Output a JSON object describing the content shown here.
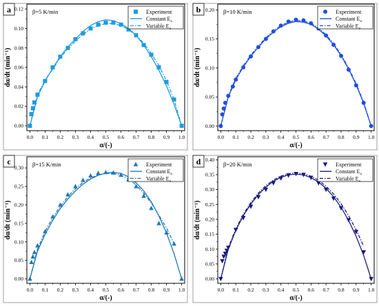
{
  "chart_data": [
    {
      "type": "scatter",
      "panel": "a",
      "condition": "β=5 K/min",
      "xlabel": "α/(-)",
      "ylabel": "dα/dt (min⁻¹)",
      "xlim": [
        -0.02,
        1.02
      ],
      "ylim": [
        -0.005,
        0.125
      ],
      "xticks": [
        "0.0",
        "0.1",
        "0.2",
        "0.3",
        "0.4",
        "0.5",
        "0.6",
        "0.7",
        "0.8",
        "0.9",
        "1.0"
      ],
      "yticks": [
        "0.00",
        "0.02",
        "0.04",
        "0.06",
        "0.08",
        "0.10",
        "0.12"
      ],
      "grid": false,
      "legend_position": "top-right",
      "color": "#1e9be0",
      "marker": "square",
      "legend": [
        "Experiment",
        "Constant E",
        "Variable E"
      ],
      "legend_subscript": "a",
      "series": [
        {
          "name": "Experiment",
          "style": "markers",
          "x": [
            0.0,
            0.01,
            0.02,
            0.03,
            0.05,
            0.1,
            0.15,
            0.2,
            0.25,
            0.3,
            0.35,
            0.4,
            0.45,
            0.5,
            0.55,
            0.6,
            0.65,
            0.7,
            0.75,
            0.8,
            0.85,
            0.9,
            0.95,
            1.0
          ],
          "y": [
            0.0,
            0.012,
            0.018,
            0.024,
            0.032,
            0.046,
            0.06,
            0.071,
            0.08,
            0.089,
            0.095,
            0.1,
            0.104,
            0.106,
            0.106,
            0.104,
            0.099,
            0.093,
            0.083,
            0.073,
            0.06,
            0.045,
            0.027,
            0.0
          ]
        },
        {
          "name": "Constant E",
          "style": "solid",
          "x": [
            0.0,
            0.05,
            0.1,
            0.15,
            0.2,
            0.25,
            0.3,
            0.35,
            0.4,
            0.45,
            0.5,
            0.55,
            0.6,
            0.65,
            0.7,
            0.75,
            0.8,
            0.85,
            0.9,
            0.95,
            1.0
          ],
          "y": [
            0.0,
            0.03,
            0.046,
            0.059,
            0.071,
            0.081,
            0.089,
            0.097,
            0.103,
            0.107,
            0.109,
            0.108,
            0.105,
            0.1,
            0.093,
            0.083,
            0.071,
            0.057,
            0.041,
            0.022,
            0.0
          ]
        },
        {
          "name": "Variable E",
          "style": "dashdot",
          "x": [
            0.0,
            0.05,
            0.1,
            0.15,
            0.2,
            0.25,
            0.3,
            0.35,
            0.4,
            0.45,
            0.5,
            0.55,
            0.6,
            0.65,
            0.7,
            0.75,
            0.8,
            0.85,
            0.9,
            0.95,
            1.0
          ],
          "y": [
            0.0,
            0.032,
            0.047,
            0.058,
            0.07,
            0.079,
            0.087,
            0.094,
            0.099,
            0.103,
            0.105,
            0.105,
            0.103,
            0.099,
            0.093,
            0.085,
            0.074,
            0.062,
            0.046,
            0.027,
            0.0
          ]
        }
      ]
    },
    {
      "type": "scatter",
      "panel": "b",
      "condition": "β=10 K/min",
      "xlabel": "α/(-)",
      "ylabel": "dα/dt (min⁻¹)",
      "xlim": [
        -0.02,
        1.02
      ],
      "ylim": [
        -0.008,
        0.21
      ],
      "xticks": [
        "0.0",
        "0.1",
        "0.2",
        "0.3",
        "0.4",
        "0.5",
        "0.6",
        "0.7",
        "0.8",
        "0.9",
        "1.0"
      ],
      "yticks": [
        "0.00",
        "0.05",
        "0.10",
        "0.15",
        "0.20"
      ],
      "grid": false,
      "legend_position": "top-right",
      "color": "#1f4fe0",
      "marker": "circle",
      "legend": [
        "Experiment",
        "Constant E",
        "Variable E"
      ],
      "legend_subscript": "a",
      "series": [
        {
          "name": "Experiment",
          "style": "markers",
          "x": [
            0.0,
            0.01,
            0.02,
            0.03,
            0.05,
            0.08,
            0.1,
            0.15,
            0.2,
            0.25,
            0.3,
            0.35,
            0.4,
            0.45,
            0.5,
            0.55,
            0.6,
            0.65,
            0.7,
            0.75,
            0.8,
            0.85,
            0.9,
            0.95,
            1.0
          ],
          "y": [
            0.0,
            0.02,
            0.03,
            0.04,
            0.052,
            0.068,
            0.08,
            0.101,
            0.12,
            0.136,
            0.15,
            0.163,
            0.173,
            0.18,
            0.183,
            0.182,
            0.177,
            0.168,
            0.156,
            0.14,
            0.121,
            0.097,
            0.07,
            0.04,
            0.0
          ]
        },
        {
          "name": "Constant E",
          "style": "solid",
          "x": [
            0.0,
            0.05,
            0.1,
            0.15,
            0.2,
            0.25,
            0.3,
            0.35,
            0.4,
            0.45,
            0.5,
            0.55,
            0.6,
            0.65,
            0.7,
            0.75,
            0.8,
            0.85,
            0.9,
            0.95,
            1.0
          ],
          "y": [
            0.0,
            0.05,
            0.08,
            0.102,
            0.12,
            0.136,
            0.15,
            0.162,
            0.171,
            0.177,
            0.18,
            0.179,
            0.175,
            0.167,
            0.155,
            0.14,
            0.121,
            0.098,
            0.071,
            0.039,
            0.0
          ]
        },
        {
          "name": "Variable E",
          "style": "dashdot",
          "x": [
            0.0,
            0.05,
            0.1,
            0.15,
            0.2,
            0.25,
            0.3,
            0.35,
            0.4,
            0.45,
            0.5,
            0.55,
            0.6,
            0.65,
            0.7,
            0.75,
            0.8,
            0.85,
            0.9,
            0.95,
            1.0
          ],
          "y": [
            0.0,
            0.052,
            0.082,
            0.104,
            0.122,
            0.138,
            0.152,
            0.164,
            0.173,
            0.179,
            0.182,
            0.181,
            0.177,
            0.169,
            0.157,
            0.142,
            0.123,
            0.1,
            0.073,
            0.041,
            0.0
          ]
        }
      ]
    },
    {
      "type": "scatter",
      "panel": "c",
      "condition": "β=15 K/min",
      "xlabel": "α/(-)",
      "ylabel": "dα/dt (min⁻¹)",
      "xlim": [
        -0.02,
        1.02
      ],
      "ylim": [
        -0.012,
        0.33
      ],
      "xticks": [
        "0.0",
        "0.1",
        "0.2",
        "0.3",
        "0.4",
        "0.5",
        "0.6",
        "0.7",
        "0.8",
        "0.9",
        "1.0"
      ],
      "yticks": [
        "0.00",
        "0.05",
        "0.10",
        "0.15",
        "0.20",
        "0.25",
        "0.30"
      ],
      "grid": false,
      "legend_position": "top-right",
      "color": "#1f78b8",
      "marker": "triangle-up",
      "legend": [
        "Experiment",
        "Constant E",
        "Variable E"
      ],
      "legend_subscript": "a",
      "series": [
        {
          "name": "Experiment",
          "style": "markers",
          "x": [
            0.0,
            0.01,
            0.02,
            0.03,
            0.05,
            0.1,
            0.15,
            0.2,
            0.25,
            0.3,
            0.35,
            0.4,
            0.45,
            0.5,
            0.55,
            0.6,
            0.65,
            0.7,
            0.75,
            0.8,
            0.85,
            0.9,
            0.95,
            1.0
          ],
          "y": [
            0.0,
            0.045,
            0.06,
            0.072,
            0.09,
            0.128,
            0.168,
            0.2,
            0.228,
            0.25,
            0.267,
            0.279,
            0.286,
            0.288,
            0.287,
            0.281,
            0.268,
            0.25,
            0.224,
            0.191,
            0.15,
            0.125,
            0.095,
            0.0
          ]
        },
        {
          "name": "Constant E",
          "style": "solid",
          "x": [
            0.0,
            0.05,
            0.1,
            0.15,
            0.2,
            0.25,
            0.3,
            0.35,
            0.4,
            0.45,
            0.5,
            0.55,
            0.6,
            0.65,
            0.7,
            0.75,
            0.8,
            0.85,
            0.9,
            0.95,
            1.0
          ],
          "y": [
            0.0,
            0.075,
            0.12,
            0.158,
            0.19,
            0.216,
            0.238,
            0.256,
            0.27,
            0.28,
            0.286,
            0.288,
            0.285,
            0.276,
            0.26,
            0.238,
            0.208,
            0.17,
            0.124,
            0.068,
            0.0
          ]
        },
        {
          "name": "Variable E",
          "style": "dashdot",
          "x": [
            0.0,
            0.05,
            0.1,
            0.15,
            0.2,
            0.25,
            0.3,
            0.35,
            0.4,
            0.45,
            0.5,
            0.55,
            0.6,
            0.65,
            0.7,
            0.75,
            0.8,
            0.85,
            0.9,
            0.95
          ],
          "y": [
            0.0,
            0.08,
            0.128,
            0.165,
            0.196,
            0.222,
            0.244,
            0.261,
            0.273,
            0.281,
            0.285,
            0.285,
            0.28,
            0.27,
            0.254,
            0.232,
            0.205,
            0.172,
            0.138,
            0.095
          ]
        }
      ]
    },
    {
      "type": "scatter",
      "panel": "d",
      "condition": "β=20 K/min",
      "xlabel": "α/(-)",
      "ylabel": "dα/dt (min⁻¹)",
      "xlim": [
        -0.02,
        1.02
      ],
      "ylim": [
        -0.015,
        0.41
      ],
      "xticks": [
        "0.0",
        "0.1",
        "0.2",
        "0.3",
        "0.4",
        "0.5",
        "0.6",
        "0.7",
        "0.8",
        "0.9",
        "1.0"
      ],
      "yticks": [
        "0.00",
        "0.05",
        "0.10",
        "0.15",
        "0.20",
        "0.25",
        "0.30",
        "0.35",
        "0.40"
      ],
      "grid": false,
      "legend_position": "top-right",
      "color": "#1a1a80",
      "marker": "triangle-down",
      "legend": [
        "Experiment",
        "Constant E",
        "Variable E"
      ],
      "legend_subscript": "a",
      "series": [
        {
          "name": "Experiment",
          "style": "markers",
          "x": [
            0.0,
            0.01,
            0.02,
            0.03,
            0.04,
            0.05,
            0.1,
            0.15,
            0.2,
            0.25,
            0.3,
            0.35,
            0.4,
            0.45,
            0.5,
            0.55,
            0.6,
            0.65,
            0.7,
            0.75,
            0.8,
            0.85,
            0.9,
            0.95,
            1.0
          ],
          "y": [
            0.0,
            0.06,
            0.075,
            0.085,
            0.095,
            0.105,
            0.165,
            0.205,
            0.243,
            0.275,
            0.3,
            0.322,
            0.338,
            0.348,
            0.353,
            0.35,
            0.34,
            0.322,
            0.3,
            0.27,
            0.238,
            0.198,
            0.158,
            0.09,
            0.0
          ]
        },
        {
          "name": "Constant E",
          "style": "solid",
          "x": [
            0.0,
            0.05,
            0.1,
            0.15,
            0.2,
            0.25,
            0.3,
            0.35,
            0.4,
            0.45,
            0.5,
            0.55,
            0.6,
            0.65,
            0.7,
            0.75,
            0.8,
            0.85,
            0.9,
            0.95,
            1.0
          ],
          "y": [
            0.0,
            0.1,
            0.163,
            0.212,
            0.251,
            0.283,
            0.308,
            0.328,
            0.341,
            0.349,
            0.352,
            0.349,
            0.34,
            0.325,
            0.304,
            0.276,
            0.24,
            0.196,
            0.143,
            0.079,
            0.0
          ]
        },
        {
          "name": "Variable E",
          "style": "dashdot",
          "x": [
            0.0,
            0.05,
            0.1,
            0.15,
            0.2,
            0.25,
            0.3,
            0.35,
            0.4,
            0.45,
            0.5,
            0.55,
            0.6,
            0.65,
            0.7,
            0.75,
            0.8,
            0.85,
            0.9,
            0.95
          ],
          "y": [
            0.0,
            0.105,
            0.168,
            0.217,
            0.256,
            0.288,
            0.313,
            0.332,
            0.345,
            0.353,
            0.356,
            0.353,
            0.345,
            0.331,
            0.311,
            0.285,
            0.252,
            0.212,
            0.165,
            0.11
          ]
        }
      ]
    }
  ]
}
